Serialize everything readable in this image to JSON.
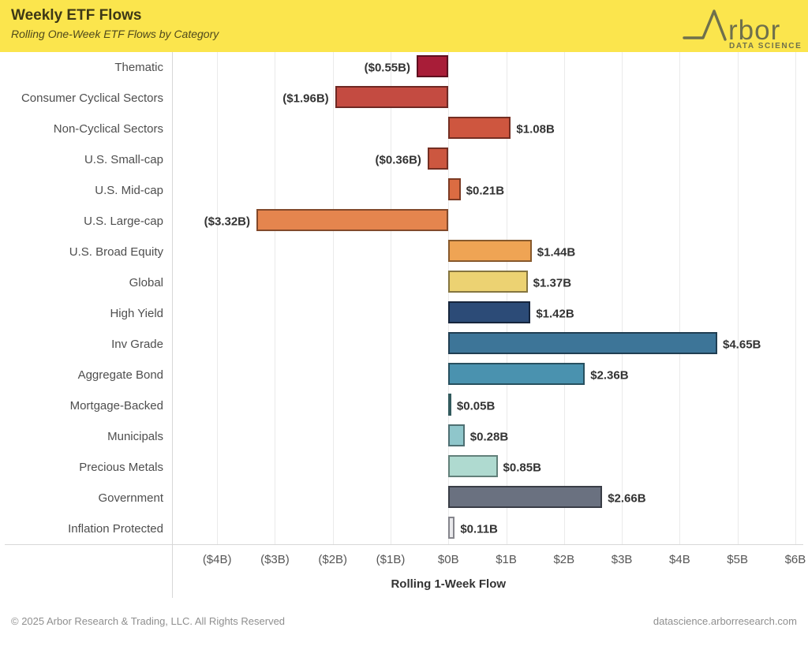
{
  "header": {
    "title": "Weekly ETF Flows",
    "subtitle": "Rolling One-Week ETF Flows by Category",
    "colors": {
      "background": "#fbe54d",
      "title_text": "#3d3816",
      "logo": "#6f704c"
    },
    "logo": {
      "brand_text": "rbor",
      "brand_sub": "DATA SCIENCE"
    }
  },
  "chart_data": {
    "type": "bar",
    "orientation": "horizontal",
    "title": "Weekly ETF Flows",
    "subtitle": "Rolling One-Week ETF Flows by Category",
    "xlabel": "Rolling 1-Week Flow",
    "grid": true,
    "x_axis": {
      "min": -4.78,
      "max": 6.11,
      "tick_values": [
        -4,
        -3,
        -2,
        -1,
        0,
        1,
        2,
        3,
        4,
        5,
        6
      ],
      "tick_labels": [
        "($4B)",
        "($3B)",
        "($2B)",
        "($1B)",
        "$0B",
        "$1B",
        "$2B",
        "$3B",
        "$4B",
        "$5B",
        "$6B"
      ]
    },
    "categories": [
      "Thematic",
      "Consumer Cyclical Sectors",
      "Non-Cyclical Sectors",
      "U.S. Small-cap",
      "U.S. Mid-cap",
      "U.S. Large-cap",
      "U.S. Broad Equity",
      "Global",
      "High Yield",
      "Inv Grade",
      "Aggregate Bond",
      "Mortgage-Backed",
      "Municipals",
      "Precious Metals",
      "Government",
      "Inflation Protected"
    ],
    "values": [
      -0.55,
      -1.96,
      1.08,
      -0.36,
      0.21,
      -3.32,
      1.44,
      1.37,
      1.42,
      4.65,
      2.36,
      0.05,
      0.28,
      0.85,
      2.66,
      0.11
    ],
    "value_labels": [
      "($0.55B)",
      "($1.96B)",
      "$1.08B",
      "($0.36B)",
      "$0.21B",
      "($3.32B)",
      "$1.44B",
      "$1.37B",
      "$1.42B",
      "$4.65B",
      "$2.36B",
      "$0.05B",
      "$0.28B",
      "$0.85B",
      "$2.66B",
      "$0.11B"
    ],
    "bar_fill_colors": [
      "#a81d38",
      "#c44b41",
      "#ce563f",
      "#cc5740",
      "#db6c42",
      "#e5854e",
      "#efa454",
      "#ecd272",
      "#2c4b77",
      "#3d7598",
      "#4a92af",
      "#5fa5aa",
      "#8fc6cb",
      "#afdad0",
      "#6a7180",
      "#e9e9ec"
    ],
    "bar_border_colors": [
      "#5e0f1f",
      "#6e2823",
      "#742e22",
      "#732f23",
      "#7c3b24",
      "#82492a",
      "#87592c",
      "#857540",
      "#16253c",
      "#203e52",
      "#27505f",
      "#335b5e",
      "#4e6f72",
      "#62807a",
      "#393d46",
      "#85858c"
    ]
  },
  "footer": {
    "left": "© 2025 Arbor Research & Trading, LLC. All Rights Reserved",
    "right": "datascience.arborresearch.com"
  }
}
